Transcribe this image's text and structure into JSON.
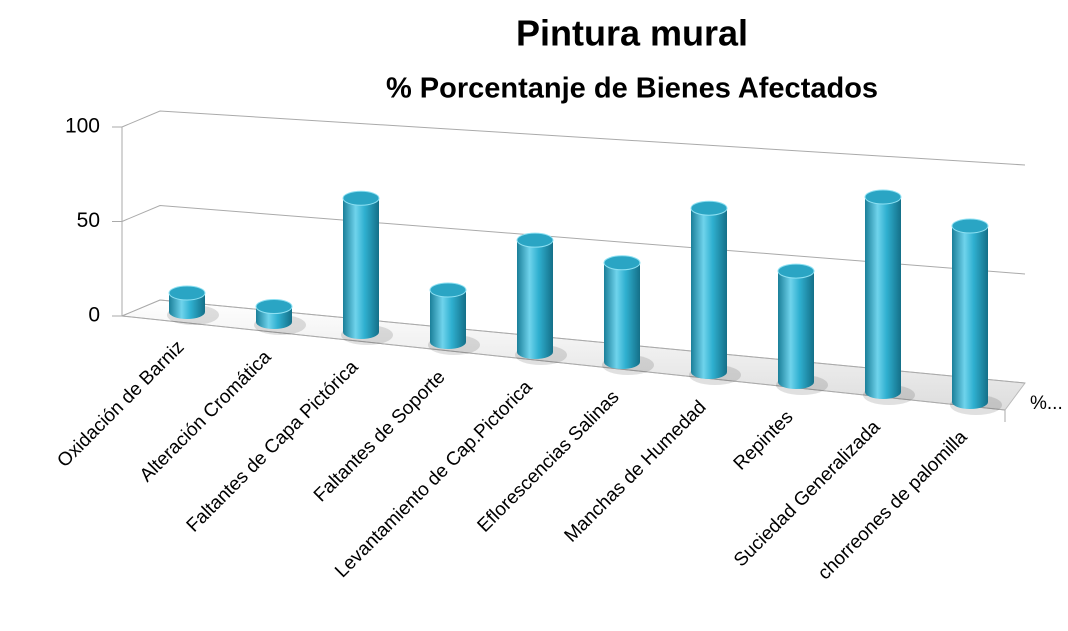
{
  "chart_data": {
    "type": "bar3d",
    "title": "Pintura mural",
    "subtitle": "% Porcentanje de Bienes Afectados",
    "categories": [
      "Oxidación de Barniz",
      "Alteración Cromática",
      "Faltantes de Capa Pictórica",
      "Faltantes de Soporte",
      "Levantamiento de Cap.Pictorica",
      "Eflorescencias Salinas",
      "Manchas de Humedad",
      "Repintes",
      "Suciedad Generalizada",
      "chorreones de palomilla"
    ],
    "series": [
      {
        "name": "%...",
        "color": "#2aa5c4",
        "values": [
          10,
          8,
          68,
          26,
          55,
          48,
          78,
          52,
          90,
          80
        ]
      }
    ],
    "ylim": [
      0,
      100
    ],
    "yticks": [
      0,
      50,
      100
    ],
    "grid": true
  }
}
